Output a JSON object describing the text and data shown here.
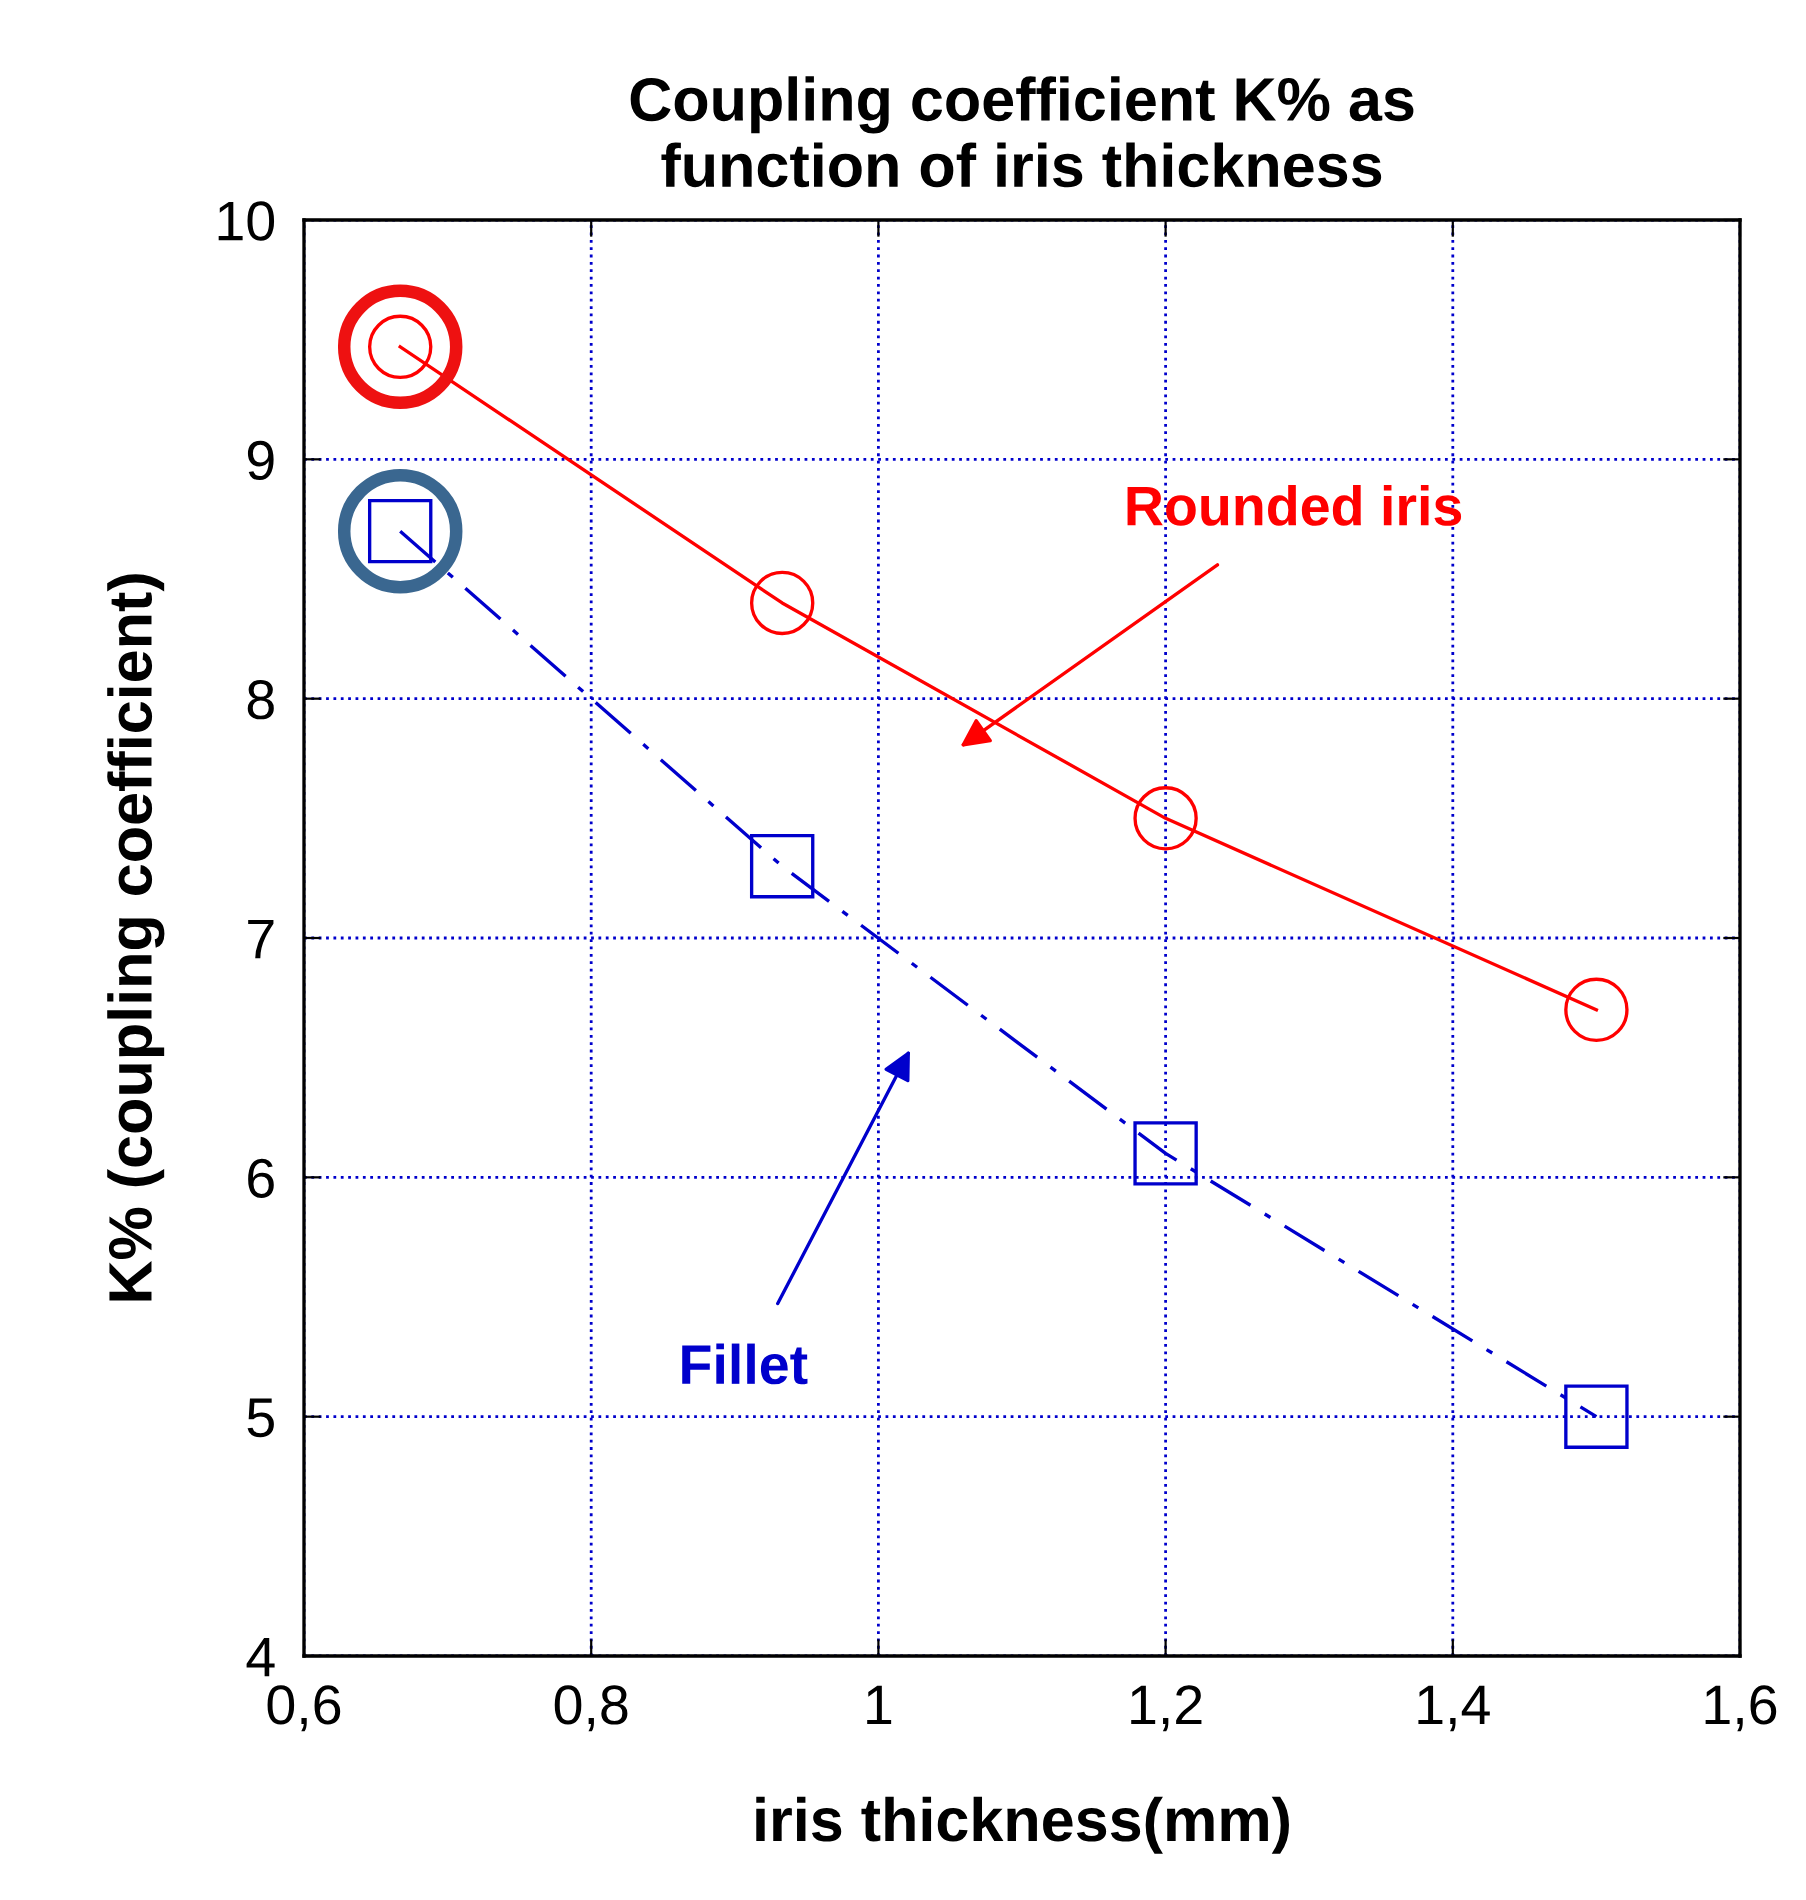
{
  "chart_data": {
    "type": "line",
    "title": "Coupling coefficient K% as\nfunction of iris thickness",
    "xlabel": "iris thickness(mm)",
    "ylabel": "K% (coupling coefficient)",
    "series": [
      {
        "name": "Rounded iris",
        "color": "#ff0000",
        "x": [
          0.667,
          0.933,
          1.2,
          1.5
        ],
        "values": [
          9.47,
          8.4,
          7.5,
          6.7
        ],
        "marker": "circle",
        "line_style": "solid"
      },
      {
        "name": "Fillet",
        "color": "#0000cc",
        "x": [
          0.667,
          0.933,
          1.2,
          1.5
        ],
        "values": [
          8.7,
          7.3,
          6.1,
          5.0
        ],
        "marker": "square",
        "line_style": "dashed"
      }
    ],
    "xlim": [
      0.6,
      1.6
    ],
    "ylim": [
      4,
      10
    ],
    "xticks": [
      {
        "value": 0.6,
        "label": "0,6"
      },
      {
        "value": 0.8,
        "label": "0,8"
      },
      1,
      {
        "value": 1.2,
        "label": "1,2"
      },
      {
        "value": 1.4,
        "label": "1,4"
      },
      {
        "value": 1.6,
        "label": "1,6"
      }
    ],
    "yticks": [
      4,
      5,
      6,
      7,
      8,
      9,
      10
    ],
    "grid": true,
    "legend": false
  }
}
